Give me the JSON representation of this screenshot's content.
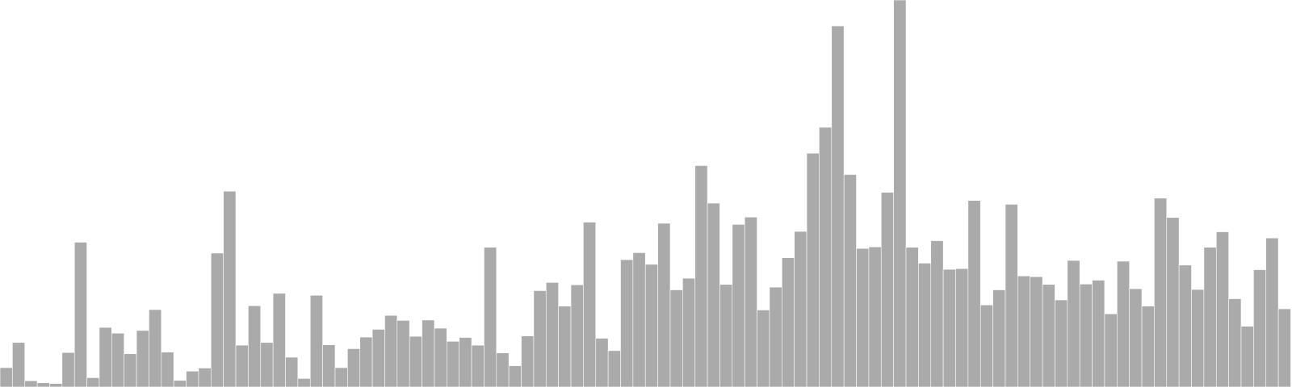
{
  "chart_data": {
    "type": "bar",
    "title": "",
    "xlabel": "",
    "ylabel": "",
    "ylim": [
      0,
      100
    ],
    "grid": false,
    "legend": "none",
    "bar_color": "#aaaaaa",
    "bar_edge_color": "#ffffff",
    "values": [
      5,
      11.5,
      1.6,
      1.1,
      0.9,
      8.9,
      37.4,
      2.4,
      15.4,
      13.9,
      8.6,
      14.6,
      20,
      9,
      1.7,
      4.1,
      4.9,
      34.6,
      50.6,
      10.8,
      21,
      11.5,
      24.2,
      7.7,
      2.2,
      23.7,
      10.9,
      5,
      9.9,
      12.9,
      14.9,
      18.5,
      17.2,
      13.1,
      17.3,
      15.2,
      11.8,
      12.8,
      10.8,
      36.1,
      8.8,
      5.5,
      13.2,
      24.9,
      27,
      20.9,
      26.4,
      42.6,
      12.6,
      9.4,
      32.9,
      34.7,
      31.7,
      42.3,
      25.1,
      28.1,
      57.2,
      47.5,
      26.5,
      42,
      43.9,
      19.9,
      25.8,
      33.4,
      40.2,
      60.4,
      67.1,
      93.3,
      54.9,
      35.8,
      36.2,
      50.3,
      100,
      36.1,
      32,
      37.8,
      30.4,
      30.6,
      48.2,
      21.2,
      25.1,
      47.2,
      28.7,
      28.5,
      26.5,
      22.5,
      32.7,
      26.6,
      27.6,
      18.9,
      32.5,
      25.4,
      20.9,
      48.8,
      43.8,
      31.5,
      25.2,
      36.1,
      40.1,
      22.8,
      15.7,
      30.3,
      38.5,
      20.2
    ]
  }
}
